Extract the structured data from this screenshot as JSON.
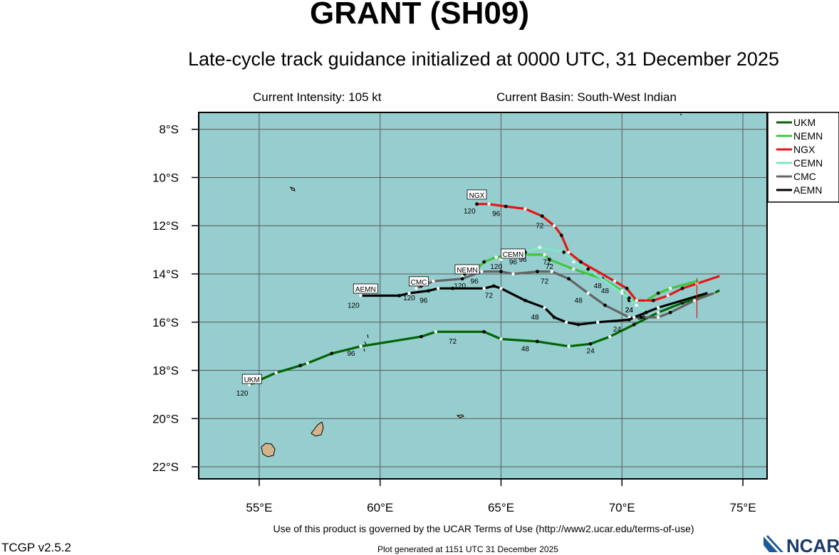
{
  "header": {
    "title": "GRANT (SH09)",
    "subtitle": "Late-cycle track guidance initialized at 0000 UTC, 31 December 2025",
    "intensity": "Current Intensity: 105 kt",
    "basin": "Current Basin: South-West Indian"
  },
  "footer": {
    "terms": "Use of this product is governed by the UCAR Terms of Use (http://www2.ucar.edu/terms-of-use)",
    "version": "TCGP v2.5.2",
    "generated": "Plot generated at 1151 UTC   31 December 2025",
    "logo_text": "NCAR"
  },
  "colors": {
    "ocean": "#96cdce",
    "land": "#d2b48c",
    "grid": "#5a5a5a",
    "UKM": "#006400",
    "NEMN": "#3cc83c",
    "NGX": "#e61414",
    "CEMN": "#7fe6c8",
    "CMC": "#646464",
    "AEMN": "#000000",
    "current_position_marker": "#e61414"
  },
  "chart_data": {
    "type": "map",
    "xlim": [
      52.5,
      76
    ],
    "ylim": [
      -22.5,
      -7.3
    ],
    "xticks": [
      55,
      60,
      65,
      70,
      75
    ],
    "xtick_labels": [
      "55°E",
      "60°E",
      "65°E",
      "70°E",
      "75°E"
    ],
    "yticks": [
      -8,
      -10,
      -12,
      -14,
      -16,
      -18,
      -20,
      -22
    ],
    "ytick_labels": [
      "8°S",
      "10°S",
      "12°S",
      "14°S",
      "16°S",
      "18°S",
      "20°S",
      "22°S"
    ],
    "grid": true,
    "legend_position": "top-right",
    "current_position": [
      73.1,
      -15.0
    ],
    "models": [
      {
        "name": "UKM",
        "track": [
          [
            74.0,
            -14.7
          ],
          [
            73.8,
            -14.8
          ],
          [
            72.5,
            -15.2
          ],
          [
            71.5,
            -15.6
          ],
          [
            70.5,
            -16.1
          ],
          [
            69.5,
            -16.6
          ],
          [
            68.7,
            -16.9
          ],
          [
            67.8,
            -17.0
          ],
          [
            66.5,
            -16.8
          ],
          [
            65.0,
            -16.7
          ],
          [
            64.3,
            -16.4
          ],
          [
            62.3,
            -16.4
          ],
          [
            61.7,
            -16.6
          ],
          [
            59.2,
            -17.0
          ],
          [
            58.0,
            -17.3
          ],
          [
            57.0,
            -17.7
          ],
          [
            56.7,
            -17.8
          ],
          [
            55.7,
            -18.1
          ],
          [
            54.8,
            -18.5
          ],
          [
            54.6,
            -18.6
          ]
        ],
        "labels": [
          {
            "text": "24",
            "lon": 68.7,
            "lat": -17.0
          },
          {
            "text": "48",
            "lon": 66.0,
            "lat": -16.9
          },
          {
            "text": "72",
            "lon": 63.0,
            "lat": -16.6
          },
          {
            "text": "96",
            "lon": 58.8,
            "lat": -17.1
          },
          {
            "text": "120",
            "lon": 54.3,
            "lat": -18.75
          }
        ]
      },
      {
        "name": "NEMN",
        "track": [
          [
            73.1,
            -14.3
          ],
          [
            72.0,
            -14.6
          ],
          [
            71.5,
            -14.8
          ],
          [
            71.0,
            -15.1
          ],
          [
            70.3,
            -15.1
          ],
          [
            70.0,
            -14.7
          ],
          [
            69.2,
            -14.2
          ],
          [
            68.0,
            -13.8
          ],
          [
            67.0,
            -13.4
          ],
          [
            66.8,
            -13.2
          ],
          [
            65.5,
            -13.2
          ],
          [
            64.8,
            -13.3
          ],
          [
            64.3,
            -13.5
          ],
          [
            64.0,
            -13.8
          ],
          [
            63.5,
            -14.0
          ],
          [
            63.4,
            -14.1
          ]
        ],
        "labels": [
          {
            "text": "24",
            "lon": 70.3,
            "lat": -15.3
          },
          {
            "text": "48",
            "lon": 69.3,
            "lat": -14.5
          },
          {
            "text": "72",
            "lon": 67.0,
            "lat": -13.5
          },
          {
            "text": "96",
            "lon": 65.5,
            "lat": -13.3
          },
          {
            "text": "120",
            "lon": 63.3,
            "lat": -14.3
          }
        ]
      },
      {
        "name": "NGX",
        "track": [
          [
            74.0,
            -14.1
          ],
          [
            73.1,
            -14.4
          ],
          [
            72.5,
            -14.6
          ],
          [
            71.9,
            -14.9
          ],
          [
            71.3,
            -15.1
          ],
          [
            70.6,
            -15.1
          ],
          [
            70.2,
            -14.6
          ],
          [
            69.7,
            -14.3
          ],
          [
            68.3,
            -13.5
          ],
          [
            67.8,
            -13.1
          ],
          [
            67.5,
            -12.4
          ],
          [
            67.2,
            -12.0
          ],
          [
            66.7,
            -11.6
          ],
          [
            66.0,
            -11.3
          ],
          [
            65.2,
            -11.2
          ],
          [
            64.5,
            -11.1
          ],
          [
            64.0,
            -11.1
          ]
        ],
        "labels": [
          {
            "text": "24",
            "lon": 70.3,
            "lat": -15.3
          },
          {
            "text": "48",
            "lon": 69.0,
            "lat": -14.3
          },
          {
            "text": "72",
            "lon": 66.6,
            "lat": -11.8
          },
          {
            "text": "96",
            "lon": 64.8,
            "lat": -11.3
          },
          {
            "text": "120",
            "lon": 63.7,
            "lat": -11.2
          }
        ]
      },
      {
        "name": "CEMN",
        "track": [
          [
            73.5,
            -14.8
          ],
          [
            72.5,
            -15.1
          ],
          [
            71.0,
            -15.6
          ],
          [
            70.6,
            -15.3
          ],
          [
            70.3,
            -15.0
          ],
          [
            70.0,
            -14.8
          ],
          [
            68.6,
            -13.8
          ],
          [
            68.0,
            -13.5
          ],
          [
            67.6,
            -13.1
          ],
          [
            66.6,
            -12.9
          ],
          [
            66.0,
            -13.1
          ],
          [
            65.0,
            -13.4
          ]
        ],
        "labels": [
          {
            "text": "72",
            "lon": 66.9,
            "lat": -13.3
          },
          {
            "text": "96",
            "lon": 65.9,
            "lat": -13.2
          },
          {
            "text": "120",
            "lon": 64.8,
            "lat": -13.5
          }
        ]
      },
      {
        "name": "CMC",
        "track": [
          [
            73.8,
            -14.8
          ],
          [
            73.0,
            -15.1
          ],
          [
            72.0,
            -15.6
          ],
          [
            71.5,
            -15.8
          ],
          [
            70.8,
            -15.8
          ],
          [
            70.3,
            -15.8
          ],
          [
            69.3,
            -15.3
          ],
          [
            68.6,
            -14.8
          ],
          [
            67.8,
            -14.2
          ],
          [
            67.1,
            -13.9
          ],
          [
            66.5,
            -13.9
          ],
          [
            65.5,
            -14.0
          ],
          [
            65.0,
            -13.9
          ],
          [
            64.2,
            -13.9
          ],
          [
            63.4,
            -14.2
          ],
          [
            62.2,
            -14.3
          ],
          [
            61.7,
            -14.5
          ],
          [
            61.5,
            -14.6
          ]
        ],
        "labels": [
          {
            "text": "24",
            "lon": 70.8,
            "lat": -15.6
          },
          {
            "text": "48",
            "lon": 68.2,
            "lat": -14.9
          },
          {
            "text": "72",
            "lon": 66.8,
            "lat": -14.1
          },
          {
            "text": "96",
            "lon": 63.9,
            "lat": -14.1
          },
          {
            "text": "120",
            "lon": 61.2,
            "lat": -14.8
          }
        ]
      },
      {
        "name": "AEMN",
        "track": [
          [
            73.5,
            -14.8
          ],
          [
            71.5,
            -15.4
          ],
          [
            71.0,
            -15.6
          ],
          [
            70.5,
            -15.8
          ],
          [
            70.3,
            -15.9
          ],
          [
            69.0,
            -16.0
          ],
          [
            68.2,
            -16.1
          ],
          [
            67.7,
            -16.0
          ],
          [
            67.2,
            -15.8
          ],
          [
            66.8,
            -15.4
          ],
          [
            66.0,
            -15.1
          ],
          [
            65.0,
            -14.6
          ],
          [
            64.7,
            -14.5
          ],
          [
            64.3,
            -14.6
          ],
          [
            63.0,
            -14.6
          ],
          [
            62.4,
            -14.6
          ],
          [
            62.0,
            -14.7
          ],
          [
            61.2,
            -14.8
          ],
          [
            60.8,
            -14.9
          ],
          [
            59.2,
            -14.9
          ]
        ],
        "labels": [
          {
            "text": "24",
            "lon": 69.8,
            "lat": -16.1
          },
          {
            "text": "48",
            "lon": 66.4,
            "lat": -15.6
          },
          {
            "text": "72",
            "lon": 64.5,
            "lat": -14.7
          },
          {
            "text": "96",
            "lon": 61.8,
            "lat": -14.9
          },
          {
            "text": "120",
            "lon": 58.9,
            "lat": -15.1
          }
        ]
      }
    ],
    "model_tags": [
      {
        "text": "UKM",
        "lon": 54.7,
        "lat": -18.4
      },
      {
        "text": "NGX",
        "lon": 64.0,
        "lat": -10.75
      },
      {
        "text": "CEMN",
        "lon": 65.5,
        "lat": -13.2
      },
      {
        "text": "NEMN",
        "lon": 63.6,
        "lat": -13.85
      },
      {
        "text": "CMC",
        "lon": 61.6,
        "lat": -14.35
      },
      {
        "text": "AEMN",
        "lon": 59.4,
        "lat": -14.65
      }
    ]
  }
}
